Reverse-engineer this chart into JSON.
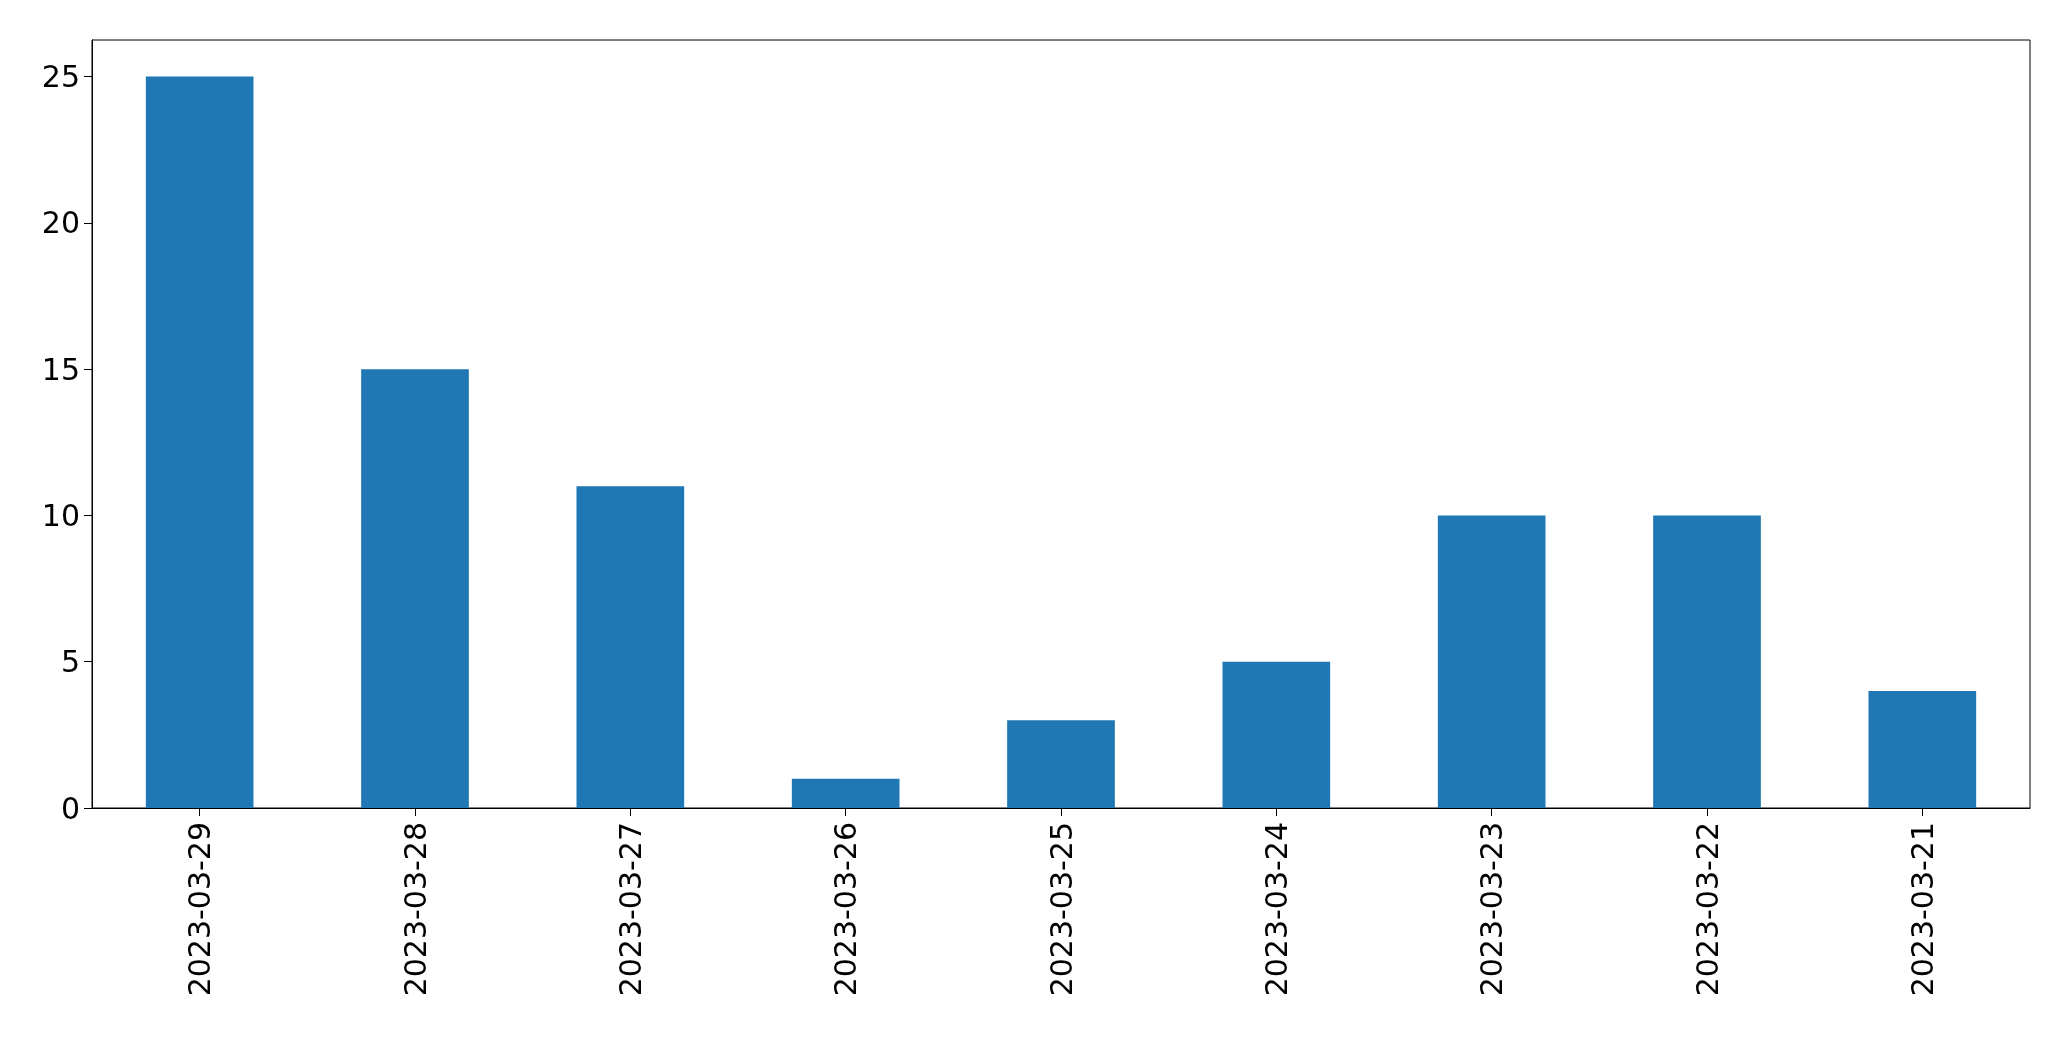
{
  "chart_data": {
    "type": "bar",
    "categories": [
      "2023-03-29",
      "2023-03-28",
      "2023-03-27",
      "2023-03-26",
      "2023-03-25",
      "2023-03-24",
      "2023-03-23",
      "2023-03-22",
      "2023-03-21"
    ],
    "values": [
      25,
      15,
      11,
      1,
      3,
      5,
      10,
      10,
      4
    ],
    "color": "#1f77b4",
    "ylim": [
      0,
      26.25
    ],
    "yticks": [
      0,
      5,
      10,
      15,
      20,
      25
    ]
  }
}
